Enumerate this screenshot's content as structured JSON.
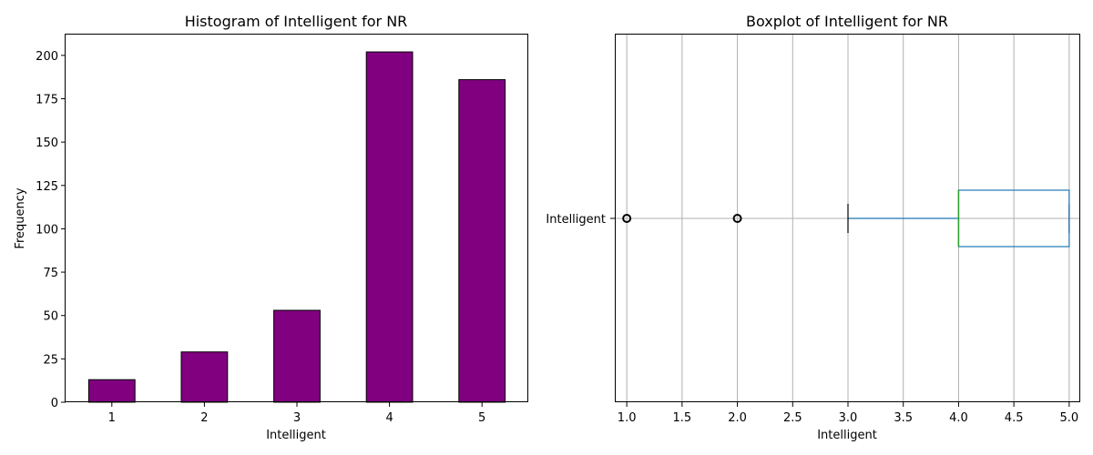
{
  "chart_data": [
    {
      "type": "bar",
      "title": "Histogram of Intelligent for NR",
      "xlabel": "Intelligent",
      "ylabel": "Frequency",
      "categories": [
        "1",
        "2",
        "3",
        "4",
        "5"
      ],
      "values": [
        13,
        29,
        53,
        202,
        186
      ],
      "ylim": [
        0,
        212
      ],
      "yticks": [
        0,
        25,
        50,
        75,
        100,
        125,
        150,
        175,
        200
      ],
      "bar_color": "#800080",
      "edge_color": "#000000",
      "grid": false
    },
    {
      "type": "boxplot",
      "orientation": "horizontal",
      "title": "Boxplot of Intelligent for NR",
      "xlabel": "Intelligent",
      "category_label": "Intelligent",
      "xlim": [
        0.9,
        5.1
      ],
      "xticks": [
        "1.0",
        "1.5",
        "2.0",
        "2.5",
        "3.0",
        "3.5",
        "4.0",
        "4.5",
        "5.0"
      ],
      "whisker_low": 3.0,
      "q1": 4.0,
      "median": 4.0,
      "q3": 5.0,
      "whisker_high": 5.0,
      "outliers": [
        1.0,
        2.0
      ],
      "box_color": "#1f77b4",
      "median_color": "#2ca02c",
      "grid": true
    }
  ]
}
